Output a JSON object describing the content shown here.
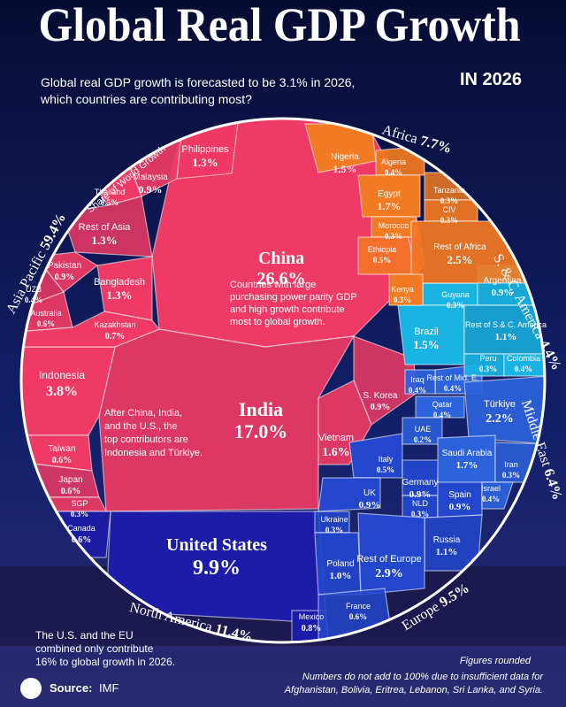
{
  "title": "Global Real GDP Growth",
  "title_year": "IN 2026",
  "intro": [
    "Global real GDP growth is forecasted to be 3.1% in 2026,",
    "which countries are contributing most?"
  ],
  "chart_data": {
    "type": "voronoi",
    "axis_note": "Share of World Growth",
    "regions": [
      {
        "name": "Asia Pacific",
        "value": 59.4,
        "value_label": "59.4%",
        "color": "#ee3a64",
        "countries": [
          {
            "name": "China",
            "value": 26.6,
            "value_label": "26.6%"
          },
          {
            "name": "India",
            "value": 17.0,
            "value_label": "17.0%"
          },
          {
            "name": "Indonesia",
            "value": 3.8,
            "value_label": "3.8%"
          },
          {
            "name": "Philippines",
            "value": 1.3,
            "value_label": "1.3%"
          },
          {
            "name": "Malaysia",
            "value": 0.9,
            "value_label": "0.9%"
          },
          {
            "name": "Thailand",
            "value": 0.5,
            "value_label": "0.5%"
          },
          {
            "name": "Rest of Asia",
            "value": 1.3,
            "value_label": "1.3%"
          },
          {
            "name": "Pakistan",
            "value": 0.9,
            "value_label": "0.9%"
          },
          {
            "name": "Bangladesh",
            "value": 1.3,
            "value_label": "1.3%"
          },
          {
            "name": "UZB",
            "value": 0.4,
            "value_label": "0.4%"
          },
          {
            "name": "Australia",
            "value": 0.6,
            "value_label": "0.6%"
          },
          {
            "name": "Kazakhstan",
            "value": 0.7,
            "value_label": "0.7%"
          },
          {
            "name": "S. Korea",
            "value": 0.9,
            "value_label": "0.9%"
          },
          {
            "name": "Vietnam",
            "value": 1.6,
            "value_label": "1.6%"
          },
          {
            "name": "Taiwan",
            "value": 0.6,
            "value_label": "0.6%"
          },
          {
            "name": "Japan",
            "value": 0.6,
            "value_label": "0.6%"
          },
          {
            "name": "SGP",
            "value": 0.3,
            "value_label": "0.3%"
          }
        ]
      },
      {
        "name": "North America",
        "value": 11.4,
        "value_label": "11.4%",
        "color": "#1c1ca8",
        "countries": [
          {
            "name": "United States",
            "value": 9.9,
            "value_label": "9.9%"
          },
          {
            "name": "Canada",
            "value": 0.6,
            "value_label": "0.6%"
          },
          {
            "name": "Mexico",
            "value": 0.8,
            "value_label": "0.8%"
          }
        ]
      },
      {
        "name": "Europe",
        "value": 9.5,
        "value_label": "9.5%",
        "color": "#2346cc",
        "countries": [
          {
            "name": "Italy",
            "value": 0.5,
            "value_label": "0.5%"
          },
          {
            "name": "Germany",
            "value": 0.9,
            "value_label": "0.9%"
          },
          {
            "name": "UK",
            "value": 0.9,
            "value_label": "0.9%"
          },
          {
            "name": "Ukraine",
            "value": 0.3,
            "value_label": "0.3%"
          },
          {
            "name": "NLD",
            "value": 0.3,
            "value_label": "0.3%"
          },
          {
            "name": "Spain",
            "value": 0.9,
            "value_label": "0.9%"
          },
          {
            "name": "Russia",
            "value": 1.1,
            "value_label": "1.1%"
          },
          {
            "name": "Poland",
            "value": 1.0,
            "value_label": "1.0%"
          },
          {
            "name": "Rest of Europe",
            "value": 2.9,
            "value_label": "2.9%"
          },
          {
            "name": "France",
            "value": 0.6,
            "value_label": "0.6%"
          }
        ]
      },
      {
        "name": "Middle East",
        "value": 6.4,
        "value_label": "6.4%",
        "color": "#2c62dc",
        "countries": [
          {
            "name": "Rest of Mid. E.",
            "value": 0.4,
            "value_label": "0.4%"
          },
          {
            "name": "Iraq",
            "value": 0.4,
            "value_label": "0.4%"
          },
          {
            "name": "Qatar",
            "value": 0.4,
            "value_label": "0.4%"
          },
          {
            "name": "UAE",
            "value": 0.2,
            "value_label": "0.2%"
          },
          {
            "name": "Türkiye",
            "value": 2.2,
            "value_label": "2.2%"
          },
          {
            "name": "Saudi Arabia",
            "value": 1.7,
            "value_label": "1.7%"
          },
          {
            "name": "Iran",
            "value": 0.3,
            "value_label": "0.3%"
          },
          {
            "name": "Israel",
            "value": 0.4,
            "value_label": "0.4%"
          }
        ]
      },
      {
        "name": "S. & C. America",
        "value": 4.4,
        "value_label": "4.4%",
        "color": "#19b4e2",
        "countries": [
          {
            "name": "Guyana",
            "value": 0.3,
            "value_label": "0.3%"
          },
          {
            "name": "Argentina",
            "value": 0.9,
            "value_label": "0.9%"
          },
          {
            "name": "Brazil",
            "value": 1.5,
            "value_label": "1.5%"
          },
          {
            "name": "Rest of S.& C. America",
            "value": 1.1,
            "value_label": "1.1%"
          },
          {
            "name": "Peru",
            "value": 0.3,
            "value_label": "0.3%"
          },
          {
            "name": "Colombia",
            "value": 0.4,
            "value_label": "0.4%"
          }
        ]
      },
      {
        "name": "Africa",
        "value": 7.7,
        "value_label": "7.7%",
        "color": "#f27a22",
        "countries": [
          {
            "name": "Nigeria",
            "value": 1.5,
            "value_label": "1.5%"
          },
          {
            "name": "Algeria",
            "value": 0.4,
            "value_label": "0.4%"
          },
          {
            "name": "Egypt",
            "value": 1.7,
            "value_label": "1.7%"
          },
          {
            "name": "Tanzania",
            "value": 0.3,
            "value_label": "0.3%"
          },
          {
            "name": "CIV",
            "value": 0.3,
            "value_label": "0.3%"
          },
          {
            "name": "Morocco",
            "value": 0.3,
            "value_label": "0.3%"
          },
          {
            "name": "Ethiopia",
            "value": 0.5,
            "value_label": "0.5%"
          },
          {
            "name": "Rest of Africa",
            "value": 2.5,
            "value_label": "2.5%"
          },
          {
            "name": "Kenya",
            "value": 0.3,
            "value_label": "0.3%"
          }
        ]
      }
    ]
  },
  "annotations": {
    "china": [
      "Countries with large",
      "purchasing power parity GDP",
      "and high growth contribute",
      "most to global growth."
    ],
    "india": [
      "After China, India,",
      "and the U.S., the",
      "top contributors are",
      "Indonesia and Türkiye."
    ],
    "us_eu": [
      "The U.S. and the EU",
      "combined only contribute",
      "16% to global growth in 2026."
    ]
  },
  "footer": {
    "rounded": "Figures rounded",
    "note": [
      "Numbers do not add to 100% due to insufficient data for",
      "Afghanistan, Bolivia, Eritrea, Lebanon, Sri Lanka, and Syria."
    ],
    "source_label": "Source:",
    "source": "IMF"
  }
}
